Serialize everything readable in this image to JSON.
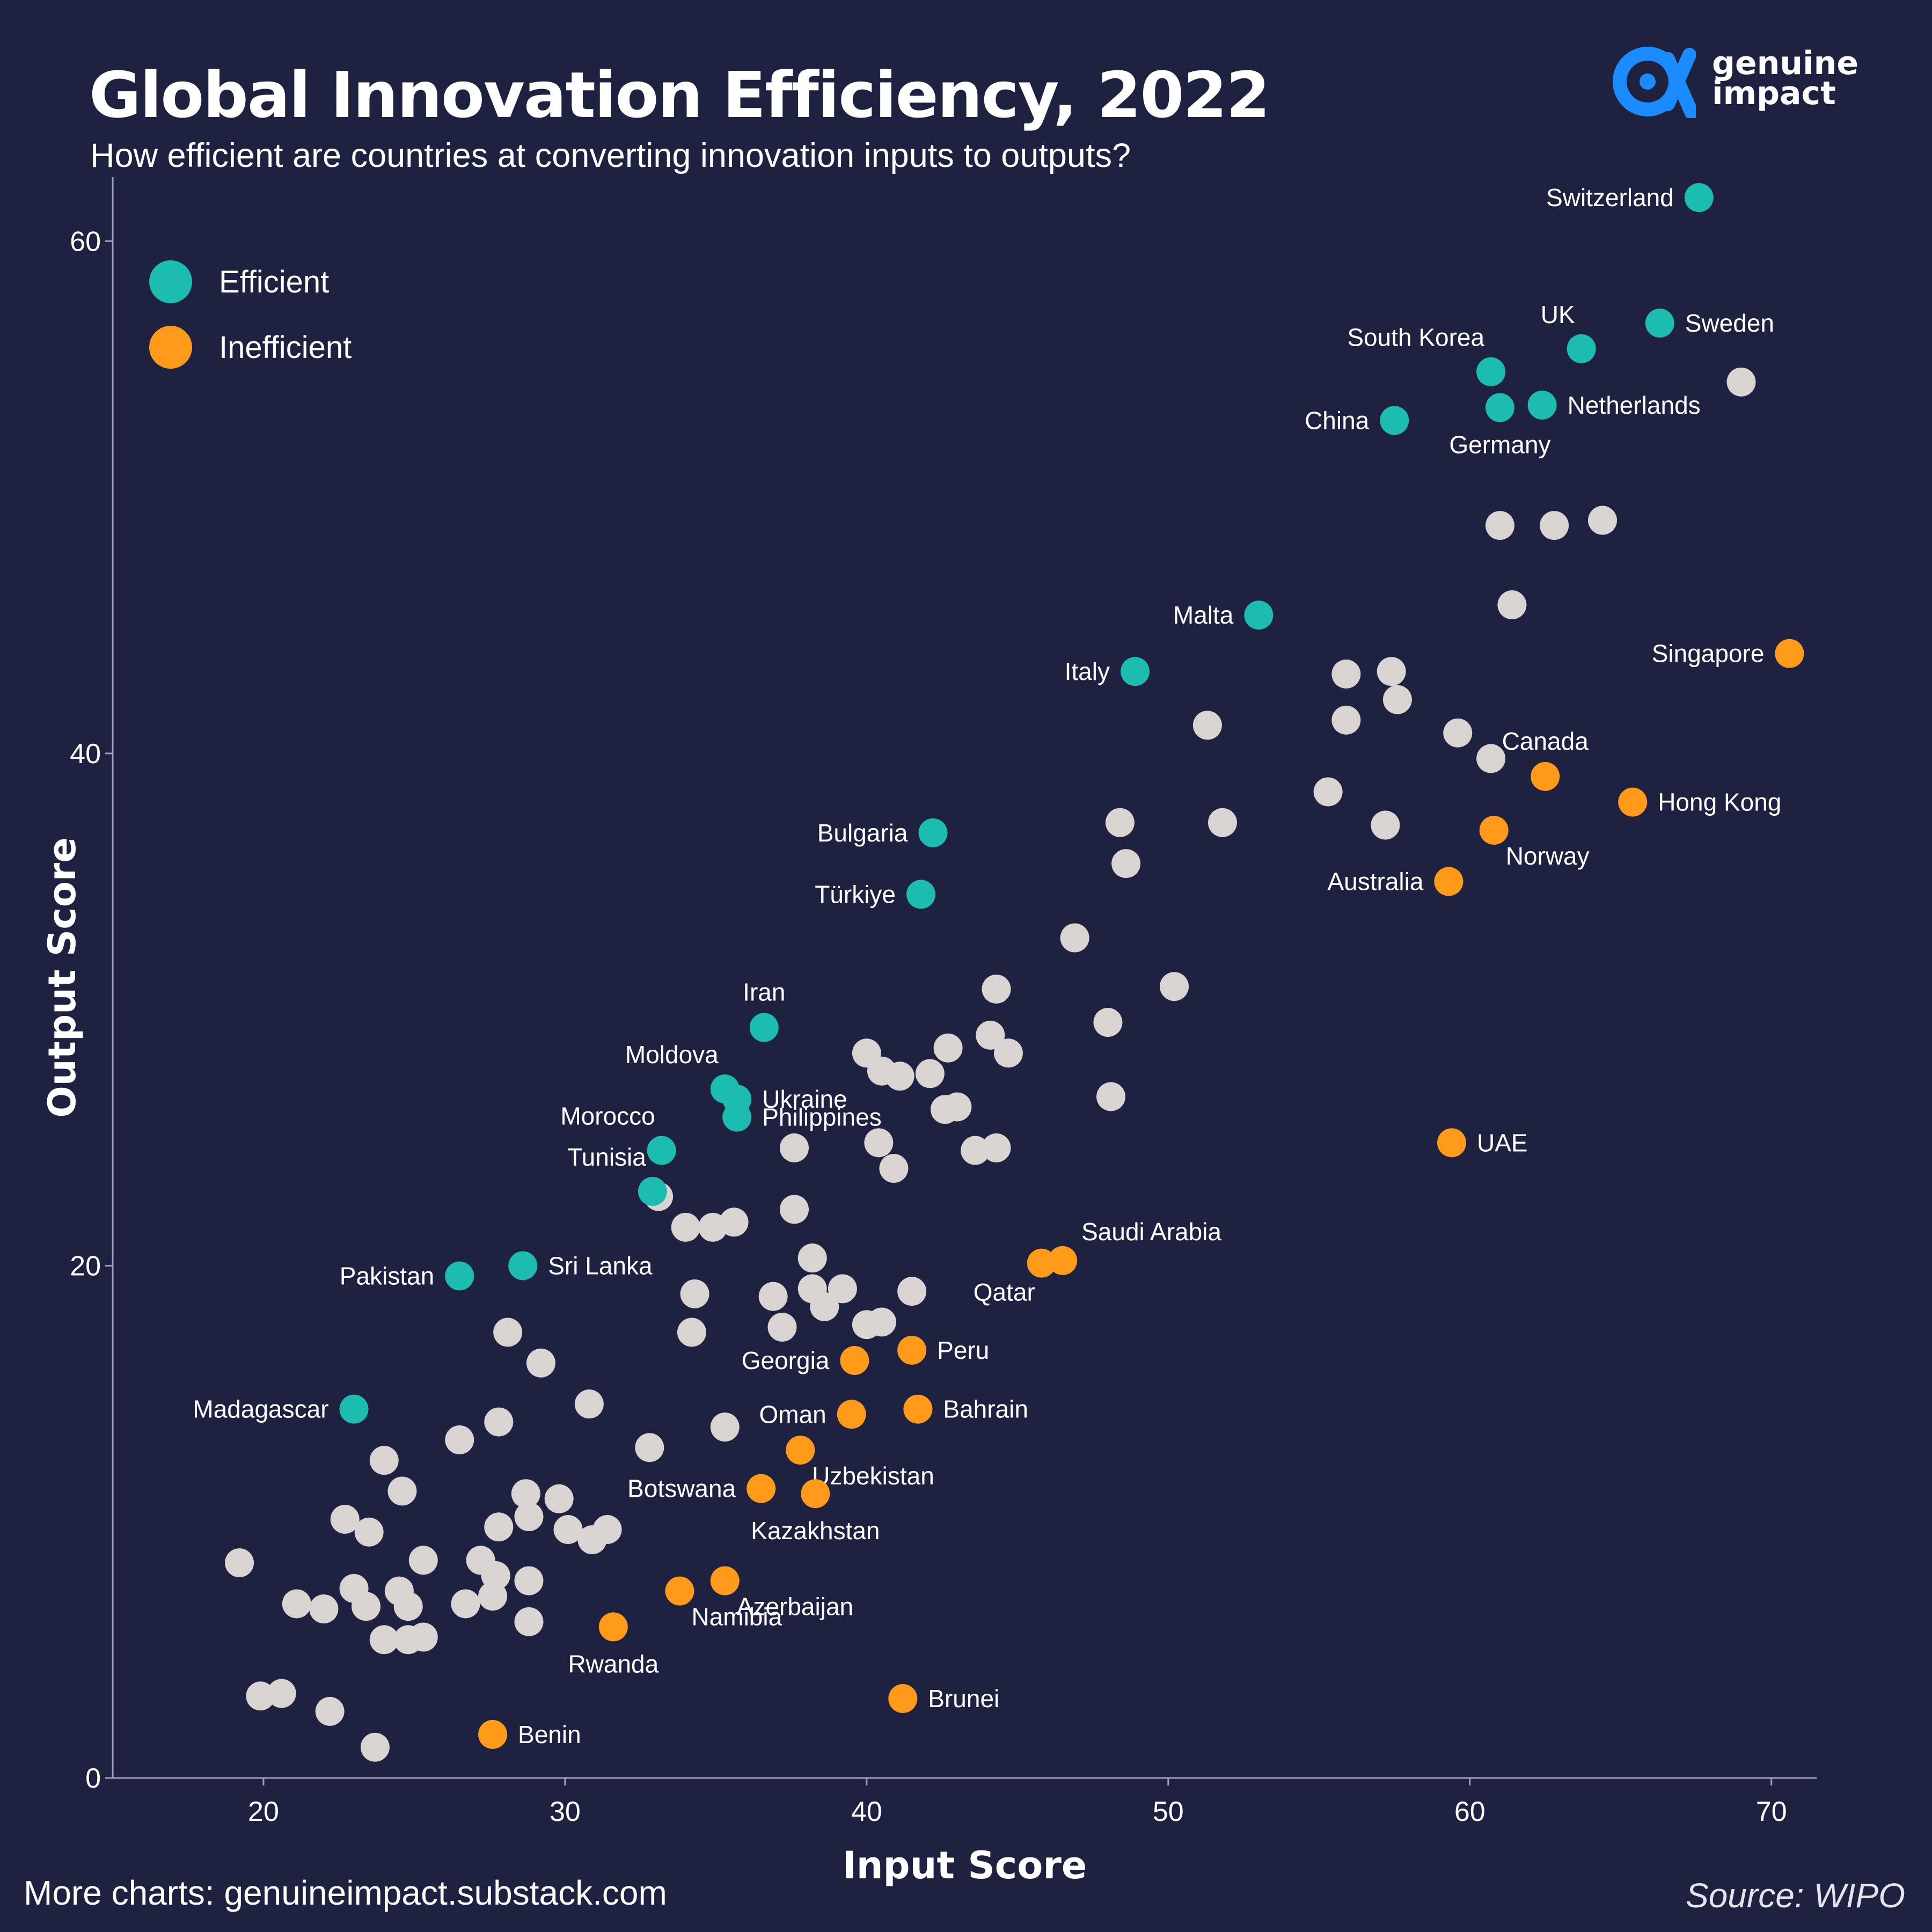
{
  "header": {
    "title": "Global Innovation Efficiency, 2022",
    "subtitle": "How efficient are countries at converting innovation inputs to outputs?"
  },
  "brand": {
    "name_line1": "genuine",
    "name_line2": "impact",
    "color": "#1a8cff"
  },
  "footer": {
    "left": "More charts: genuineimpact.substack.com",
    "right": "Source: WIPO"
  },
  "colors": {
    "background": "#1e2240",
    "efficient": "#1cbcb0",
    "inefficient": "#ff9a1a",
    "neutral": "#d9d3d1"
  },
  "chart_data": {
    "type": "scatter",
    "xlabel": "Input Score",
    "ylabel": "Output Score",
    "xlim": [
      15,
      71.5
    ],
    "ylim": [
      0,
      62.5
    ],
    "xticks": [
      20,
      30,
      40,
      50,
      60,
      70
    ],
    "yticks": [
      0,
      20,
      40,
      60
    ],
    "grid": false,
    "legend": {
      "position": "top-left",
      "entries": [
        {
          "name": "Efficient",
          "group": "efficient"
        },
        {
          "name": "Inefficient",
          "group": "inefficient"
        }
      ]
    },
    "labeled_points": [
      {
        "label": "Switzerland",
        "x": 67.6,
        "y": 61.7,
        "group": "efficient",
        "anchor": "left"
      },
      {
        "label": "Sweden",
        "x": 66.3,
        "y": 56.8,
        "group": "efficient",
        "anchor": "right"
      },
      {
        "label": "UK",
        "x": 63.7,
        "y": 55.8,
        "group": "efficient",
        "anchor": "above-left"
      },
      {
        "label": "South Korea",
        "x": 60.7,
        "y": 54.9,
        "group": "efficient",
        "anchor": "above-left"
      },
      {
        "label": "Netherlands",
        "x": 62.4,
        "y": 53.6,
        "group": "efficient",
        "anchor": "right"
      },
      {
        "label": "Germany",
        "x": 61.0,
        "y": 53.5,
        "group": "efficient",
        "anchor": "below"
      },
      {
        "label": "China",
        "x": 57.5,
        "y": 53.0,
        "group": "efficient",
        "anchor": "left"
      },
      {
        "label": "Malta",
        "x": 53.0,
        "y": 45.4,
        "group": "efficient",
        "anchor": "left"
      },
      {
        "label": "Italy",
        "x": 48.9,
        "y": 43.2,
        "group": "efficient",
        "anchor": "left"
      },
      {
        "label": "Bulgaria",
        "x": 42.2,
        "y": 36.9,
        "group": "efficient",
        "anchor": "left"
      },
      {
        "label": "Türkiye",
        "x": 41.8,
        "y": 34.5,
        "group": "efficient",
        "anchor": "left"
      },
      {
        "label": "Iran",
        "x": 36.6,
        "y": 29.3,
        "group": "efficient",
        "anchor": "above"
      },
      {
        "label": "Moldova",
        "x": 35.3,
        "y": 26.9,
        "group": "efficient",
        "anchor": "above-left"
      },
      {
        "label": "Ukraine",
        "x": 35.7,
        "y": 26.5,
        "group": "efficient",
        "anchor": "right"
      },
      {
        "label": "Philippines",
        "x": 35.7,
        "y": 25.8,
        "group": "efficient",
        "anchor": "right"
      },
      {
        "label": "Morocco",
        "x": 33.2,
        "y": 24.5,
        "group": "efficient",
        "anchor": "above-left"
      },
      {
        "label": "Tunisia",
        "x": 32.9,
        "y": 22.9,
        "group": "efficient",
        "anchor": "above-left"
      },
      {
        "label": "Sri Lanka",
        "x": 28.6,
        "y": 20.0,
        "group": "efficient",
        "anchor": "right"
      },
      {
        "label": "Pakistan",
        "x": 26.5,
        "y": 19.6,
        "group": "efficient",
        "anchor": "left"
      },
      {
        "label": "Madagascar",
        "x": 23.0,
        "y": 14.4,
        "group": "efficient",
        "anchor": "left"
      },
      {
        "label": "Singapore",
        "x": 70.6,
        "y": 43.9,
        "group": "inefficient",
        "anchor": "left"
      },
      {
        "label": "Hong Kong",
        "x": 65.4,
        "y": 38.1,
        "group": "inefficient",
        "anchor": "right"
      },
      {
        "label": "Canada",
        "x": 62.5,
        "y": 39.1,
        "group": "inefficient",
        "anchor": "above"
      },
      {
        "label": "Norway",
        "x": 60.8,
        "y": 37.0,
        "group": "inefficient",
        "anchor": "below-right"
      },
      {
        "label": "Australia",
        "x": 59.3,
        "y": 35.0,
        "group": "inefficient",
        "anchor": "left"
      },
      {
        "label": "UAE",
        "x": 59.4,
        "y": 24.8,
        "group": "inefficient",
        "anchor": "right"
      },
      {
        "label": "Saudi Arabia",
        "x": 46.5,
        "y": 20.2,
        "group": "inefficient",
        "anchor": "above-right"
      },
      {
        "label": "Qatar",
        "x": 45.8,
        "y": 20.1,
        "group": "inefficient",
        "anchor": "below-left"
      },
      {
        "label": "Peru",
        "x": 41.5,
        "y": 16.7,
        "group": "inefficient",
        "anchor": "right"
      },
      {
        "label": "Georgia",
        "x": 39.6,
        "y": 16.3,
        "group": "inefficient",
        "anchor": "left"
      },
      {
        "label": "Bahrain",
        "x": 41.7,
        "y": 14.4,
        "group": "inefficient",
        "anchor": "right"
      },
      {
        "label": "Oman",
        "x": 39.5,
        "y": 14.2,
        "group": "inefficient",
        "anchor": "left"
      },
      {
        "label": "Uzbekistan",
        "x": 37.8,
        "y": 12.8,
        "group": "inefficient",
        "anchor": "below-right"
      },
      {
        "label": "Botswana",
        "x": 36.5,
        "y": 11.3,
        "group": "inefficient",
        "anchor": "left"
      },
      {
        "label": "Kazakhstan",
        "x": 38.3,
        "y": 11.1,
        "group": "inefficient",
        "anchor": "below"
      },
      {
        "label": "Azerbaijan",
        "x": 35.3,
        "y": 7.7,
        "group": "inefficient",
        "anchor": "below-right"
      },
      {
        "label": "Namibia",
        "x": 33.8,
        "y": 7.3,
        "group": "inefficient",
        "anchor": "below-right"
      },
      {
        "label": "Rwanda",
        "x": 31.6,
        "y": 5.9,
        "group": "inefficient",
        "anchor": "below"
      },
      {
        "label": "Brunei",
        "x": 41.2,
        "y": 3.1,
        "group": "inefficient",
        "anchor": "right"
      },
      {
        "label": "Benin",
        "x": 27.6,
        "y": 1.7,
        "group": "inefficient",
        "anchor": "right"
      }
    ],
    "neutral_points": [
      [
        69.0,
        54.5
      ],
      [
        64.4,
        49.1
      ],
      [
        62.8,
        48.9
      ],
      [
        61.0,
        48.9
      ],
      [
        61.4,
        45.8
      ],
      [
        57.4,
        43.2
      ],
      [
        55.9,
        43.1
      ],
      [
        57.6,
        42.1
      ],
      [
        55.9,
        41.3
      ],
      [
        51.3,
        41.1
      ],
      [
        59.6,
        40.8
      ],
      [
        60.7,
        39.8
      ],
      [
        55.3,
        38.5
      ],
      [
        57.2,
        37.2
      ],
      [
        51.8,
        37.3
      ],
      [
        48.4,
        37.3
      ],
      [
        48.6,
        35.7
      ],
      [
        46.9,
        32.8
      ],
      [
        44.3,
        30.8
      ],
      [
        50.2,
        30.9
      ],
      [
        48.0,
        29.5
      ],
      [
        44.1,
        29.0
      ],
      [
        44.7,
        28.3
      ],
      [
        42.7,
        28.5
      ],
      [
        40.0,
        28.3
      ],
      [
        40.5,
        27.6
      ],
      [
        41.1,
        27.4
      ],
      [
        42.1,
        27.5
      ],
      [
        48.1,
        26.6
      ],
      [
        42.6,
        26.1
      ],
      [
        43.0,
        26.2
      ],
      [
        37.6,
        24.6
      ],
      [
        40.4,
        24.8
      ],
      [
        43.6,
        24.5
      ],
      [
        44.3,
        24.6
      ],
      [
        40.9,
        23.8
      ],
      [
        33.1,
        22.7
      ],
      [
        37.6,
        22.2
      ],
      [
        34.0,
        21.5
      ],
      [
        34.9,
        21.5
      ],
      [
        35.6,
        21.7
      ],
      [
        38.2,
        20.3
      ],
      [
        34.3,
        18.9
      ],
      [
        36.9,
        18.8
      ],
      [
        38.2,
        19.1
      ],
      [
        38.6,
        18.4
      ],
      [
        39.2,
        19.1
      ],
      [
        41.5,
        19.0
      ],
      [
        34.2,
        17.4
      ],
      [
        37.2,
        17.6
      ],
      [
        40.0,
        17.7
      ],
      [
        40.5,
        17.8
      ],
      [
        28.1,
        17.4
      ],
      [
        29.2,
        16.2
      ],
      [
        30.8,
        14.6
      ],
      [
        27.8,
        13.9
      ],
      [
        35.3,
        13.7
      ],
      [
        26.5,
        13.2
      ],
      [
        32.8,
        12.9
      ],
      [
        24.0,
        12.4
      ],
      [
        24.6,
        11.2
      ],
      [
        28.7,
        11.1
      ],
      [
        29.8,
        10.9
      ],
      [
        22.7,
        10.1
      ],
      [
        28.8,
        10.2
      ],
      [
        23.5,
        9.6
      ],
      [
        27.8,
        9.8
      ],
      [
        30.1,
        9.7
      ],
      [
        31.4,
        9.7
      ],
      [
        30.9,
        9.3
      ],
      [
        19.2,
        8.4
      ],
      [
        25.3,
        8.5
      ],
      [
        27.2,
        8.5
      ],
      [
        27.7,
        7.9
      ],
      [
        28.8,
        7.7
      ],
      [
        21.1,
        6.8
      ],
      [
        22.0,
        6.6
      ],
      [
        23.0,
        7.4
      ],
      [
        23.4,
        6.7
      ],
      [
        24.5,
        7.3
      ],
      [
        24.8,
        6.7
      ],
      [
        26.7,
        6.8
      ],
      [
        27.6,
        7.1
      ],
      [
        28.8,
        6.1
      ],
      [
        24.0,
        5.4
      ],
      [
        24.8,
        5.4
      ],
      [
        25.3,
        5.5
      ],
      [
        19.9,
        3.2
      ],
      [
        20.6,
        3.3
      ],
      [
        22.2,
        2.6
      ],
      [
        23.7,
        1.2
      ]
    ]
  }
}
